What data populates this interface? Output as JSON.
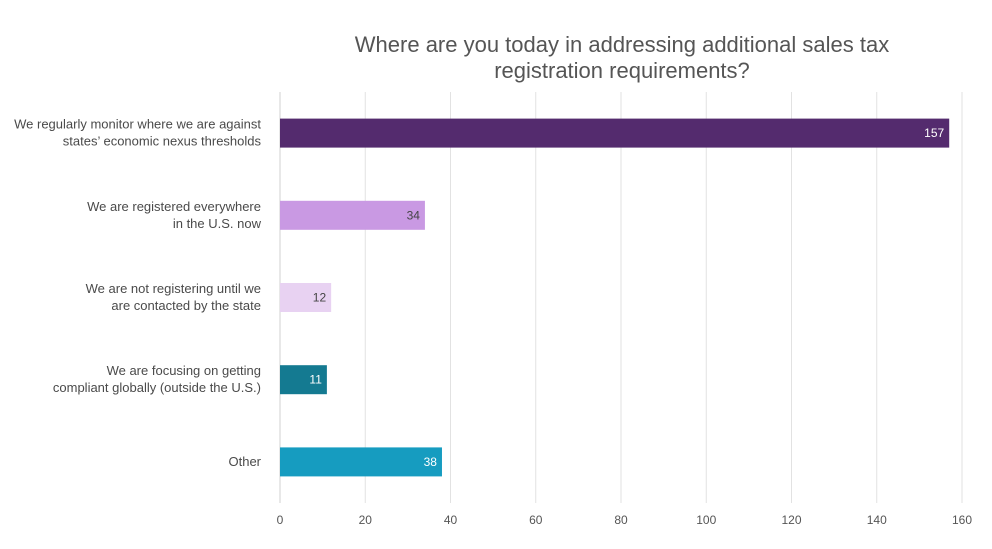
{
  "chart_data": {
    "type": "bar",
    "orientation": "horizontal",
    "title": [
      "Where are you today in addressing additional sales tax",
      "registration requirements?"
    ],
    "categories": [
      [
        "We regularly monitor where we are against",
        "states’ economic nexus thresholds"
      ],
      [
        "We are registered everywhere",
        "in the U.S. now"
      ],
      [
        "We are not registering until we",
        "are contacted by the state"
      ],
      [
        "We are focusing on getting",
        "compliant globally (outside the U.S.)"
      ],
      [
        "Other"
      ]
    ],
    "values": [
      157,
      34,
      12,
      11,
      38
    ],
    "data_labels": [
      "157",
      "34",
      "12",
      "11",
      "38"
    ],
    "colors": [
      "#542b6e",
      "#c999e3",
      "#e8d2f2",
      "#147a91",
      "#169cc0"
    ],
    "label_colors": [
      "#ffffff",
      "#444444",
      "#444444",
      "#ffffff",
      "#ffffff"
    ],
    "xlim": [
      0,
      160
    ],
    "xticks": [
      0,
      20,
      40,
      60,
      80,
      100,
      120,
      140,
      160
    ],
    "grid": true,
    "legend": "none",
    "xlabel": "",
    "ylabel": ""
  }
}
